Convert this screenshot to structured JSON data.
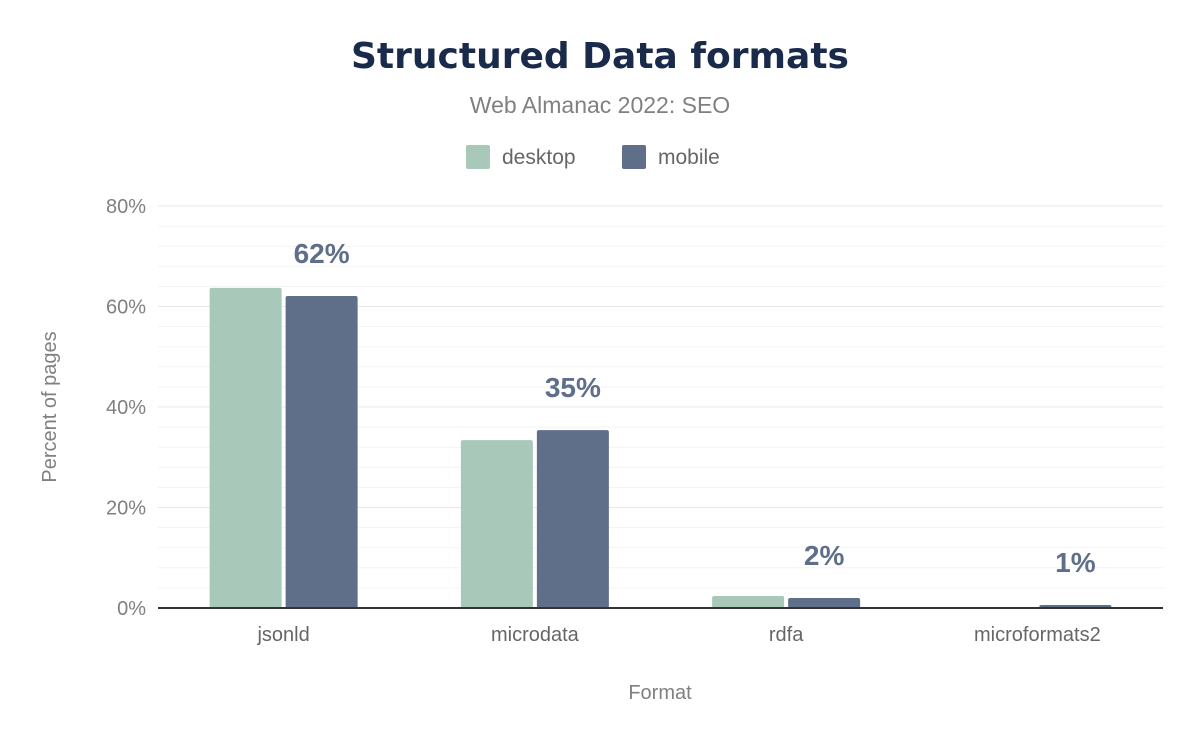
{
  "chart_data": {
    "type": "bar",
    "title": "Structured Data formats",
    "subtitle": "Web Almanac 2022: SEO",
    "xlabel": "Format",
    "ylabel": "Percent of pages",
    "categories": [
      "jsonld",
      "microdata",
      "rdfa",
      "microformats2"
    ],
    "series": [
      {
        "name": "desktop",
        "color": "#a8c8b9",
        "values": [
          63.7,
          33.4,
          2.4,
          0.0
        ]
      },
      {
        "name": "mobile",
        "color": "#5f6f8a",
        "values": [
          62.1,
          35.4,
          2.0,
          0.6
        ]
      }
    ],
    "data_labels": [
      "62%",
      "35%",
      "2%",
      "1%"
    ],
    "ylim": [
      0,
      80
    ],
    "yticks": [
      0,
      20,
      40,
      60,
      80
    ],
    "ytick_labels": [
      "0%",
      "20%",
      "40%",
      "60%",
      "80%"
    ],
    "grid": true,
    "legend": "top-center"
  }
}
